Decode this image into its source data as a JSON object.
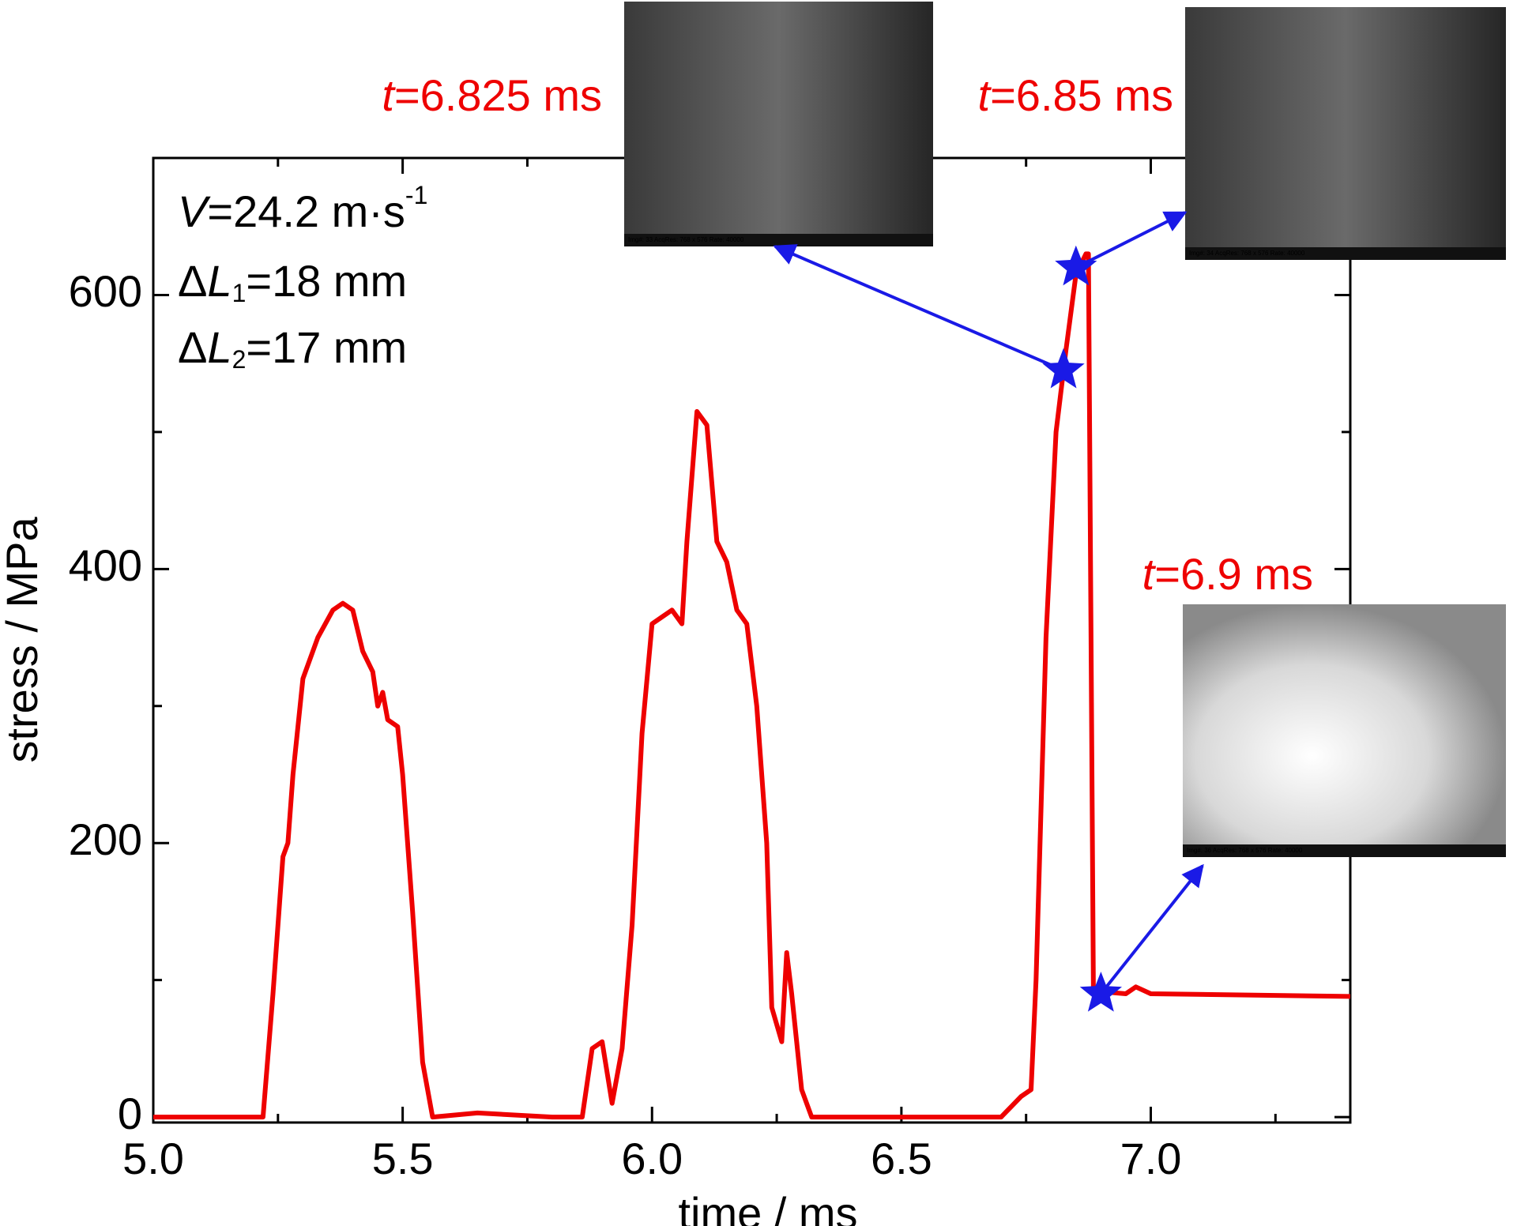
{
  "chart_data": {
    "type": "line",
    "xlabel": "time / ms",
    "ylabel": "stress / MPa",
    "xlim": [
      5.0,
      7.4
    ],
    "ylim": [
      -4,
      700
    ],
    "xticks": [
      {
        "value": 5,
        "label": "5.0"
      },
      5.5,
      {
        "value": 6,
        "label": "6.0"
      },
      6.5,
      {
        "value": 7,
        "label": "7.0"
      }
    ],
    "xticks_minor": [
      5.25,
      5.75,
      6.25,
      6.75,
      7.25
    ],
    "yticks": [
      0,
      200,
      400,
      600
    ],
    "yticks_minor": [
      100,
      300,
      500
    ],
    "x": [
      5.0,
      5.2,
      5.22,
      5.24,
      5.26,
      5.27,
      5.28,
      5.3,
      5.33,
      5.36,
      5.38,
      5.4,
      5.42,
      5.44,
      5.45,
      5.46,
      5.47,
      5.49,
      5.5,
      5.52,
      5.54,
      5.56,
      5.65,
      5.8,
      5.86,
      5.88,
      5.9,
      5.92,
      5.94,
      5.96,
      5.98,
      6.0,
      6.02,
      6.04,
      6.06,
      6.07,
      6.09,
      6.11,
      6.13,
      6.15,
      6.17,
      6.19,
      6.21,
      6.23,
      6.24,
      6.26,
      6.27,
      6.28,
      6.3,
      6.32,
      6.7,
      6.74,
      6.76,
      6.77,
      6.79,
      6.81,
      6.83,
      6.85,
      6.87,
      6.875,
      6.885,
      6.95,
      6.97,
      7.0,
      7.4
    ],
    "series": [
      {
        "color": "#ee0000",
        "values": [
          0,
          0,
          0,
          90,
          190,
          200,
          250,
          320,
          350,
          370,
          375,
          370,
          340,
          325,
          300,
          310,
          290,
          285,
          250,
          150,
          40,
          0,
          3,
          0,
          0,
          50,
          55,
          10,
          50,
          140,
          280,
          360,
          365,
          370,
          360,
          420,
          515,
          505,
          420,
          405,
          370,
          360,
          300,
          200,
          80,
          55,
          120,
          90,
          20,
          0,
          0,
          15,
          20,
          100,
          350,
          500,
          560,
          615,
          630,
          630,
          92,
          90,
          95,
          90,
          88
        ]
      }
    ],
    "markers": {
      "x": [
        6.825,
        6.85,
        6.9
      ],
      "values": [
        545,
        620,
        90
      ],
      "color": "#1a1ae6"
    },
    "info_lines": [
      [
        {
          "text": "V",
          "style": "italic"
        },
        {
          "text": "=24.2 m·s"
        },
        {
          "text": "-1",
          "style": "sup"
        }
      ],
      [
        {
          "text": "Δ"
        },
        {
          "text": "L",
          "style": "italic"
        },
        {
          "text": "1",
          "style": "sub"
        },
        {
          "text": "=18 mm"
        }
      ],
      [
        {
          "text": "Δ"
        },
        {
          "text": "L",
          "style": "italic"
        },
        {
          "text": "2",
          "style": "sub"
        },
        {
          "text": "=17 mm"
        }
      ]
    ],
    "annotations": [
      {
        "var": "t",
        "text": "=6.825 ms",
        "caption": "Img#: 33 AcqRes: 768 x 576 Rate: 40000"
      },
      {
        "var": "t",
        "text": "=6.85 ms",
        "caption": "Img#: 34 AcqRes: 768 x 576 Rate: 40000"
      },
      {
        "var": "t",
        "text": "=6.9 ms",
        "caption": "Img#: 36 AcqRes: 768 x 576 Rate: 40000"
      }
    ]
  }
}
